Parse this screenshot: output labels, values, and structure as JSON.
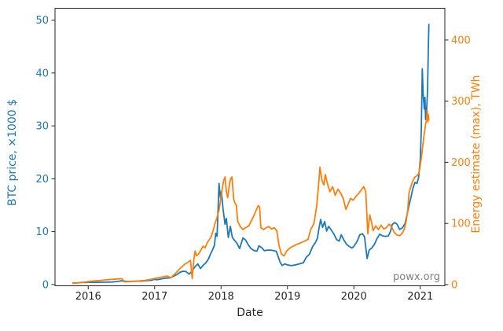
{
  "figure": {
    "xlabel": "Date",
    "ylabel_left": "BTC price, ×1000 $",
    "ylabel_right": "Energy estimate (max), TWh",
    "watermark": "powx.org"
  },
  "colors": {
    "price": "#1f77b4",
    "energy": "#ff7f0e",
    "axis": "#262626",
    "tick_label_bottom": "#262626",
    "watermark": "#7f7f7f",
    "background": "#ffffff"
  },
  "chart_data": {
    "type": "line",
    "title": "",
    "xlabel": "Date",
    "grid": false,
    "legend_position": "none",
    "x_units": "decimal_year",
    "xlim": [
      2015.5,
      2021.37
    ],
    "x_ticks": [
      2016,
      2017,
      2018,
      2019,
      2020,
      2021
    ],
    "axes": {
      "left": {
        "label": "BTC price, ×1000 $",
        "color": "#1f77b4",
        "lim": [
          -0.25,
          52.25
        ],
        "ticks": [
          0,
          10,
          20,
          30,
          40,
          50
        ]
      },
      "right": {
        "label": "Energy estimate (max), TWh",
        "color": "#ff7f0e",
        "lim": [
          -2,
          452
        ],
        "ticks": [
          0,
          100,
          200,
          300,
          400
        ]
      }
    },
    "series": [
      {
        "name": "BTC price, ×1000 $",
        "axis": "left",
        "color": "#1f77b4",
        "points": [
          [
            2015.77,
            0.27
          ],
          [
            2015.85,
            0.31
          ],
          [
            2015.92,
            0.42
          ],
          [
            2015.96,
            0.36
          ],
          [
            2016.0,
            0.43
          ],
          [
            2016.08,
            0.39
          ],
          [
            2016.17,
            0.42
          ],
          [
            2016.26,
            0.44
          ],
          [
            2016.36,
            0.46
          ],
          [
            2016.45,
            0.59
          ],
          [
            2016.5,
            0.68
          ],
          [
            2016.57,
            0.6
          ],
          [
            2016.65,
            0.58
          ],
          [
            2016.72,
            0.61
          ],
          [
            2016.8,
            0.63
          ],
          [
            2016.88,
            0.71
          ],
          [
            2016.95,
            0.79
          ],
          [
            2017.0,
            0.97
          ],
          [
            2017.04,
            0.89
          ],
          [
            2017.1,
            1.05
          ],
          [
            2017.17,
            1.2
          ],
          [
            2017.23,
            1.23
          ],
          [
            2017.29,
            1.6
          ],
          [
            2017.34,
            1.9
          ],
          [
            2017.38,
            2.3
          ],
          [
            2017.43,
            2.5
          ],
          [
            2017.47,
            2.45
          ],
          [
            2017.52,
            1.95
          ],
          [
            2017.57,
            2.6
          ],
          [
            2017.61,
            3.4
          ],
          [
            2017.65,
            3.9
          ],
          [
            2017.69,
            3.0
          ],
          [
            2017.73,
            3.6
          ],
          [
            2017.77,
            4.1
          ],
          [
            2017.81,
            4.8
          ],
          [
            2017.84,
            5.7
          ],
          [
            2017.87,
            6.5
          ],
          [
            2017.9,
            7.4
          ],
          [
            2017.92,
            9.7
          ],
          [
            2017.94,
            9.1
          ],
          [
            2017.955,
            14.0
          ],
          [
            2017.97,
            19.1
          ],
          [
            2017.99,
            16.4
          ],
          [
            2018.005,
            17.6
          ],
          [
            2018.03,
            14.3
          ],
          [
            2018.06,
            11.4
          ],
          [
            2018.08,
            12.5
          ],
          [
            2018.11,
            8.9
          ],
          [
            2018.14,
            11.0
          ],
          [
            2018.17,
            8.9
          ],
          [
            2018.2,
            8.4
          ],
          [
            2018.24,
            7.8
          ],
          [
            2018.28,
            6.8
          ],
          [
            2018.33,
            8.8
          ],
          [
            2018.37,
            8.4
          ],
          [
            2018.41,
            7.5
          ],
          [
            2018.45,
            6.8
          ],
          [
            2018.5,
            6.4
          ],
          [
            2018.54,
            6.3
          ],
          [
            2018.57,
            7.3
          ],
          [
            2018.61,
            7.0
          ],
          [
            2018.65,
            6.4
          ],
          [
            2018.7,
            6.5
          ],
          [
            2018.75,
            6.5
          ],
          [
            2018.79,
            6.4
          ],
          [
            2018.83,
            6.3
          ],
          [
            2018.86,
            5.3
          ],
          [
            2018.89,
            4.2
          ],
          [
            2018.92,
            3.6
          ],
          [
            2018.96,
            3.9
          ],
          [
            2019.0,
            3.7
          ],
          [
            2019.06,
            3.55
          ],
          [
            2019.12,
            3.7
          ],
          [
            2019.18,
            3.9
          ],
          [
            2019.24,
            4.1
          ],
          [
            2019.28,
            5.1
          ],
          [
            2019.33,
            5.7
          ],
          [
            2019.38,
            7.2
          ],
          [
            2019.42,
            7.9
          ],
          [
            2019.45,
            8.7
          ],
          [
            2019.47,
            10.3
          ],
          [
            2019.5,
            12.3
          ],
          [
            2019.53,
            10.8
          ],
          [
            2019.56,
            11.9
          ],
          [
            2019.59,
            10.1
          ],
          [
            2019.62,
            11.0
          ],
          [
            2019.66,
            10.3
          ],
          [
            2019.7,
            9.5
          ],
          [
            2019.74,
            8.5
          ],
          [
            2019.78,
            8.2
          ],
          [
            2019.81,
            9.4
          ],
          [
            2019.85,
            8.4
          ],
          [
            2019.89,
            7.6
          ],
          [
            2019.93,
            7.2
          ],
          [
            2019.97,
            6.9
          ],
          [
            2020.0,
            7.2
          ],
          [
            2020.05,
            8.2
          ],
          [
            2020.09,
            9.4
          ],
          [
            2020.13,
            9.6
          ],
          [
            2020.16,
            9.0
          ],
          [
            2020.2,
            4.9
          ],
          [
            2020.23,
            6.5
          ],
          [
            2020.27,
            6.9
          ],
          [
            2020.31,
            7.6
          ],
          [
            2020.35,
            8.7
          ],
          [
            2020.39,
            9.5
          ],
          [
            2020.43,
            9.2
          ],
          [
            2020.48,
            9.1
          ],
          [
            2020.52,
            9.2
          ],
          [
            2020.55,
            10.0
          ],
          [
            2020.58,
            11.4
          ],
          [
            2020.62,
            11.7
          ],
          [
            2020.65,
            11.4
          ],
          [
            2020.69,
            10.4
          ],
          [
            2020.73,
            10.7
          ],
          [
            2020.77,
            11.5
          ],
          [
            2020.8,
            13.1
          ],
          [
            2020.83,
            14.9
          ],
          [
            2020.86,
            16.5
          ],
          [
            2020.89,
            18.2
          ],
          [
            2020.92,
            19.3
          ],
          [
            2020.95,
            19.1
          ],
          [
            2020.975,
            20.2
          ],
          [
            2021.0,
            23.5
          ],
          [
            2021.015,
            29.0
          ],
          [
            2021.025,
            36.0
          ],
          [
            2021.03,
            40.8
          ],
          [
            2021.045,
            35.8
          ],
          [
            2021.06,
            33.2
          ],
          [
            2021.07,
            35.4
          ],
          [
            2021.08,
            31.2
          ],
          [
            2021.095,
            33.0
          ],
          [
            2021.11,
            36.5
          ],
          [
            2021.12,
            44.0
          ],
          [
            2021.13,
            49.2
          ]
        ]
      },
      {
        "name": "Energy estimate (max), TWh",
        "axis": "right",
        "color": "#ff7f0e",
        "points": [
          [
            2015.77,
            2.0
          ],
          [
            2015.85,
            2.8
          ],
          [
            2015.93,
            3.6
          ],
          [
            2016.0,
            5.0
          ],
          [
            2016.08,
            5.8
          ],
          [
            2016.17,
            6.6
          ],
          [
            2016.26,
            7.6
          ],
          [
            2016.36,
            8.6
          ],
          [
            2016.45,
            9.3
          ],
          [
            2016.51,
            9.6
          ],
          [
            2016.545,
            4.6
          ],
          [
            2016.62,
            5.0
          ],
          [
            2016.7,
            5.4
          ],
          [
            2016.78,
            6.0
          ],
          [
            2016.86,
            7.0
          ],
          [
            2016.93,
            8.3
          ],
          [
            2017.0,
            10.0
          ],
          [
            2017.07,
            11.5
          ],
          [
            2017.14,
            13.0
          ],
          [
            2017.2,
            13.8
          ],
          [
            2017.24,
            11.0
          ],
          [
            2017.28,
            15.0
          ],
          [
            2017.33,
            20.0
          ],
          [
            2017.37,
            25.0
          ],
          [
            2017.41,
            29.0
          ],
          [
            2017.45,
            33.0
          ],
          [
            2017.5,
            36.5
          ],
          [
            2017.54,
            39.5
          ],
          [
            2017.565,
            10.0
          ],
          [
            2017.59,
            40.0
          ],
          [
            2017.61,
            55.0
          ],
          [
            2017.63,
            47.0
          ],
          [
            2017.66,
            50.0
          ],
          [
            2017.7,
            57.0
          ],
          [
            2017.73,
            63.0
          ],
          [
            2017.76,
            60.0
          ],
          [
            2017.79,
            68.0
          ],
          [
            2017.82,
            73.0
          ],
          [
            2017.85,
            78.0
          ],
          [
            2017.88,
            88.0
          ],
          [
            2017.91,
            100.0
          ],
          [
            2017.94,
            110.0
          ],
          [
            2017.97,
            122.0
          ],
          [
            2018.0,
            143.0
          ],
          [
            2018.02,
            158.0
          ],
          [
            2018.04,
            170.0
          ],
          [
            2018.06,
            176.0
          ],
          [
            2018.08,
            153.0
          ],
          [
            2018.1,
            142.0
          ],
          [
            2018.13,
            167.0
          ],
          [
            2018.15,
            174.0
          ],
          [
            2018.165,
            176.0
          ],
          [
            2018.19,
            140.0
          ],
          [
            2018.21,
            133.0
          ],
          [
            2018.23,
            130.0
          ],
          [
            2018.25,
            104.0
          ],
          [
            2018.29,
            95.0
          ],
          [
            2018.33,
            90.0
          ],
          [
            2018.37,
            93.0
          ],
          [
            2018.42,
            96.0
          ],
          [
            2018.46,
            105.0
          ],
          [
            2018.5,
            114.0
          ],
          [
            2018.53,
            122.0
          ],
          [
            2018.56,
            129.0
          ],
          [
            2018.58,
            127.0
          ],
          [
            2018.6,
            93.0
          ],
          [
            2018.64,
            90.0
          ],
          [
            2018.68,
            93.0
          ],
          [
            2018.72,
            95.0
          ],
          [
            2018.76,
            91.0
          ],
          [
            2018.8,
            93.0
          ],
          [
            2018.84,
            88.0
          ],
          [
            2018.875,
            63.0
          ],
          [
            2018.91,
            50.0
          ],
          [
            2018.95,
            47.0
          ],
          [
            2018.99,
            55.0
          ],
          [
            2019.04,
            60.0
          ],
          [
            2019.09,
            63.0
          ],
          [
            2019.15,
            66.0
          ],
          [
            2019.21,
            69.0
          ],
          [
            2019.26,
            71.0
          ],
          [
            2019.31,
            74.0
          ],
          [
            2019.35,
            90.0
          ],
          [
            2019.4,
            100.0
          ],
          [
            2019.44,
            128.0
          ],
          [
            2019.47,
            165.0
          ],
          [
            2019.49,
            192.0
          ],
          [
            2019.52,
            170.0
          ],
          [
            2019.55,
            163.0
          ],
          [
            2019.57,
            180.0
          ],
          [
            2019.6,
            166.0
          ],
          [
            2019.64,
            152.0
          ],
          [
            2019.68,
            160.0
          ],
          [
            2019.72,
            146.0
          ],
          [
            2019.76,
            156.0
          ],
          [
            2019.8,
            150.0
          ],
          [
            2019.84,
            141.0
          ],
          [
            2019.88,
            123.0
          ],
          [
            2019.92,
            133.0
          ],
          [
            2019.95,
            141.0
          ],
          [
            2019.99,
            138.0
          ],
          [
            2020.03,
            144.0
          ],
          [
            2020.08,
            150.0
          ],
          [
            2020.12,
            156.0
          ],
          [
            2020.15,
            160.0
          ],
          [
            2020.18,
            152.0
          ],
          [
            2020.21,
            83.0
          ],
          [
            2020.24,
            114.0
          ],
          [
            2020.27,
            100.0
          ],
          [
            2020.29,
            88.0
          ],
          [
            2020.33,
            96.0
          ],
          [
            2020.37,
            90.0
          ],
          [
            2020.41,
            97.0
          ],
          [
            2020.45,
            91.0
          ],
          [
            2020.49,
            93.0
          ],
          [
            2020.53,
            99.0
          ],
          [
            2020.57,
            94.0
          ],
          [
            2020.61,
            85.0
          ],
          [
            2020.65,
            81.0
          ],
          [
            2020.69,
            80.0
          ],
          [
            2020.72,
            83.0
          ],
          [
            2020.75,
            88.0
          ],
          [
            2020.77,
            95.0
          ],
          [
            2020.79,
            105.0
          ],
          [
            2020.81,
            121.0
          ],
          [
            2020.83,
            150.0
          ],
          [
            2020.86,
            161.0
          ],
          [
            2020.89,
            170.0
          ],
          [
            2020.92,
            176.0
          ],
          [
            2020.95,
            178.0
          ],
          [
            2020.98,
            182.0
          ],
          [
            2021.0,
            195.0
          ],
          [
            2021.02,
            210.0
          ],
          [
            2021.04,
            229.0
          ],
          [
            2021.06,
            247.0
          ],
          [
            2021.08,
            262.0
          ],
          [
            2021.095,
            270.0
          ],
          [
            2021.105,
            285.0
          ],
          [
            2021.115,
            266.0
          ],
          [
            2021.122,
            278.0
          ],
          [
            2021.13,
            270.0
          ]
        ]
      }
    ]
  },
  "layout_note": "dual-axis line chart, black box frame, outward ticks, no grid"
}
